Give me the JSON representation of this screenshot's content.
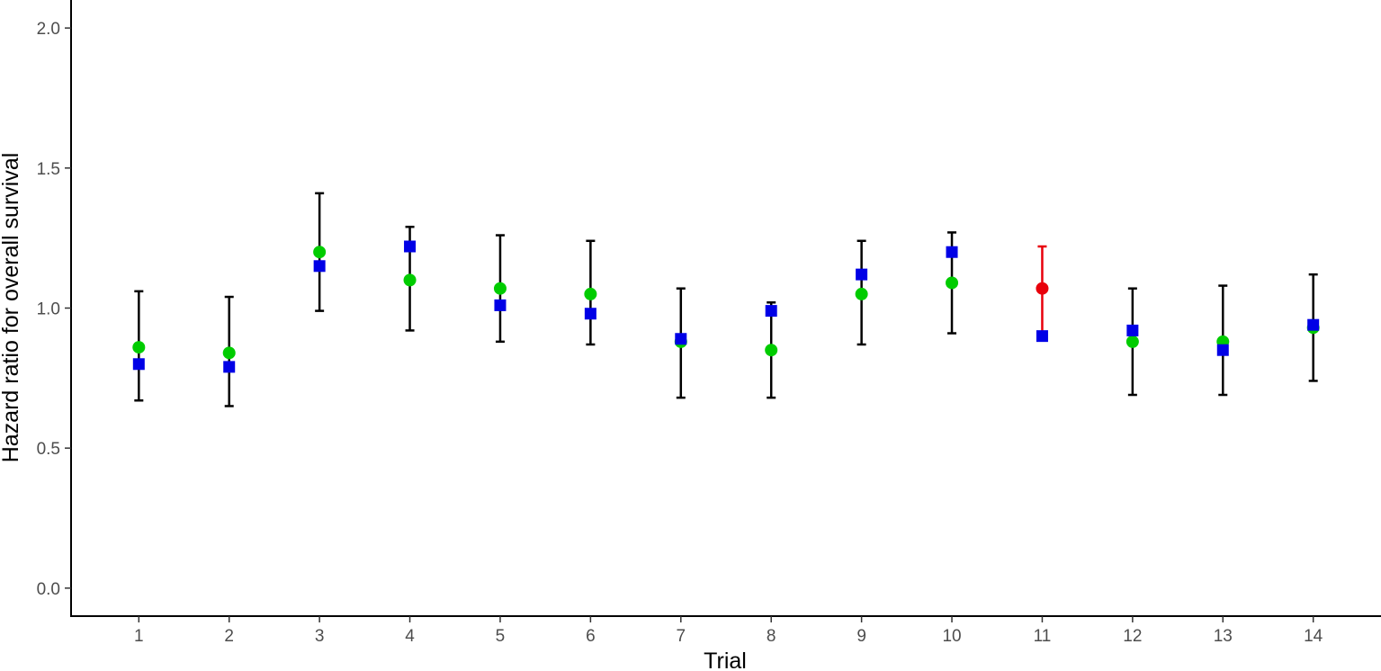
{
  "chart_data": {
    "type": "scatter",
    "xlabel": "Trial",
    "ylabel": "Hazard ratio for overall survival",
    "x_ticks": [
      "1",
      "2",
      "3",
      "4",
      "5",
      "6",
      "7",
      "8",
      "9",
      "10",
      "11",
      "12",
      "13",
      "14"
    ],
    "y_ticks": [
      "0.0",
      "0.5",
      "1.0",
      "1.5",
      "2.0"
    ],
    "xlim": [
      0.25,
      14.75
    ],
    "ylim": [
      -0.1,
      2.1
    ],
    "grid": false,
    "legend": "none",
    "error_bars": [
      {
        "trial": 1,
        "lower": 0.67,
        "upper": 1.06,
        "color": "#000000"
      },
      {
        "trial": 2,
        "lower": 0.65,
        "upper": 1.04,
        "color": "#000000"
      },
      {
        "trial": 3,
        "lower": 0.99,
        "upper": 1.41,
        "color": "#000000"
      },
      {
        "trial": 4,
        "lower": 0.92,
        "upper": 1.29,
        "color": "#000000"
      },
      {
        "trial": 5,
        "lower": 0.88,
        "upper": 1.26,
        "color": "#000000"
      },
      {
        "trial": 6,
        "lower": 0.87,
        "upper": 1.24,
        "color": "#000000"
      },
      {
        "trial": 7,
        "lower": 0.68,
        "upper": 1.07,
        "color": "#000000"
      },
      {
        "trial": 8,
        "lower": 0.68,
        "upper": 1.02,
        "color": "#000000"
      },
      {
        "trial": 9,
        "lower": 0.87,
        "upper": 1.24,
        "color": "#000000"
      },
      {
        "trial": 10,
        "lower": 0.91,
        "upper": 1.27,
        "color": "#000000"
      },
      {
        "trial": 11,
        "lower": 0.9,
        "upper": 1.22,
        "color": "#e8000b"
      },
      {
        "trial": 12,
        "lower": 0.69,
        "upper": 1.07,
        "color": "#000000"
      },
      {
        "trial": 13,
        "lower": 0.69,
        "upper": 1.08,
        "color": "#000000"
      },
      {
        "trial": 14,
        "lower": 0.74,
        "upper": 1.12,
        "color": "#000000"
      }
    ],
    "series": [
      {
        "marker": "circle",
        "color": "#00cc00",
        "points": [
          {
            "trial": 1,
            "value": 0.86
          },
          {
            "trial": 2,
            "value": 0.84
          },
          {
            "trial": 3,
            "value": 1.2
          },
          {
            "trial": 4,
            "value": 1.1
          },
          {
            "trial": 5,
            "value": 1.07
          },
          {
            "trial": 6,
            "value": 1.05
          },
          {
            "trial": 7,
            "value": 0.88
          },
          {
            "trial": 8,
            "value": 0.85
          },
          {
            "trial": 9,
            "value": 1.05
          },
          {
            "trial": 10,
            "value": 1.09
          },
          {
            "trial": 11,
            "value": 1.07,
            "color": "#e8000b"
          },
          {
            "trial": 12,
            "value": 0.88
          },
          {
            "trial": 13,
            "value": 0.88
          },
          {
            "trial": 14,
            "value": 0.93
          }
        ]
      },
      {
        "marker": "square",
        "color": "#0000e6",
        "points": [
          {
            "trial": 1,
            "value": 0.8
          },
          {
            "trial": 2,
            "value": 0.79
          },
          {
            "trial": 3,
            "value": 1.15
          },
          {
            "trial": 4,
            "value": 1.22
          },
          {
            "trial": 5,
            "value": 1.01
          },
          {
            "trial": 6,
            "value": 0.98
          },
          {
            "trial": 7,
            "value": 0.89
          },
          {
            "trial": 8,
            "value": 0.99
          },
          {
            "trial": 9,
            "value": 1.12
          },
          {
            "trial": 10,
            "value": 1.2
          },
          {
            "trial": 11,
            "value": 0.9
          },
          {
            "trial": 12,
            "value": 0.92
          },
          {
            "trial": 13,
            "value": 0.85
          },
          {
            "trial": 14,
            "value": 0.94
          }
        ]
      }
    ]
  }
}
